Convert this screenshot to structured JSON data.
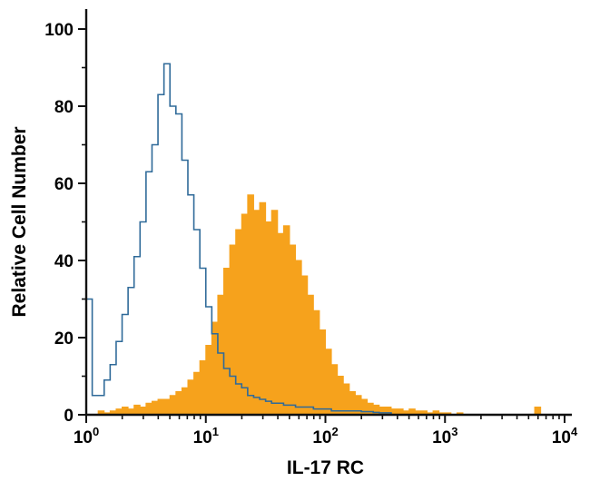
{
  "chart_data": {
    "type": "histogram",
    "subtype": "flow-cytometry-overlay",
    "title": "",
    "xlabel": "IL-17 RC",
    "ylabel": "Relative Cell Number",
    "x_scale": "log10",
    "x_log_range": [
      0,
      4
    ],
    "x_tick_base": "10",
    "x_tick_exponents": [
      0,
      1,
      2,
      3,
      4
    ],
    "ylim": [
      0,
      100
    ],
    "y_major_ticks": [
      0,
      20,
      40,
      60,
      80,
      100
    ],
    "y_minor_ticks": [
      10,
      30,
      50,
      70,
      90
    ],
    "grid": false,
    "legend": "none",
    "bin_width_log10": 0.05,
    "bins_start_log10": 0,
    "series": [
      {
        "id": "filled_histogram",
        "style": "filled",
        "color": "#F6A21C",
        "values": [
          0,
          0,
          1,
          0.5,
          1,
          1.5,
          2,
          1.5,
          2.5,
          2,
          3,
          3.5,
          4,
          4,
          5,
          6,
          7,
          9,
          11,
          14,
          18,
          24,
          31,
          38,
          44,
          48,
          52,
          57,
          53,
          55,
          50,
          53,
          47,
          49,
          44,
          40,
          36,
          31,
          27,
          22,
          17,
          13,
          10,
          8,
          6,
          5,
          4,
          3,
          2.5,
          2,
          2,
          1.5,
          1.5,
          1,
          1.5,
          1,
          1,
          0.5,
          1,
          0.5,
          0.5,
          0,
          0.5,
          0,
          0,
          0,
          0,
          0,
          0,
          0,
          0,
          0,
          0,
          0,
          0,
          2,
          0,
          0,
          0,
          0
        ]
      },
      {
        "id": "open_histogram",
        "style": "open",
        "color": "#2F6A99",
        "values": [
          30,
          5,
          5,
          9,
          13,
          19,
          26,
          33,
          41,
          50,
          63,
          70,
          83,
          91,
          80,
          78,
          66,
          57,
          48,
          38,
          28,
          21,
          16,
          12,
          10,
          8,
          7,
          5,
          4.5,
          4,
          3.5,
          3,
          3,
          2.5,
          2.5,
          2,
          2,
          2,
          1.5,
          1.5,
          1.5,
          1,
          1,
          1,
          1,
          1,
          0.8,
          0.8,
          0.6,
          0.5,
          0.5,
          0,
          0,
          0,
          0,
          0,
          0,
          0,
          0,
          0,
          0,
          0,
          0,
          0,
          0,
          0,
          0,
          0,
          0,
          0,
          0,
          0,
          0,
          0,
          0,
          0,
          0,
          0,
          0,
          0
        ]
      }
    ],
    "axis_color": "#111111"
  }
}
